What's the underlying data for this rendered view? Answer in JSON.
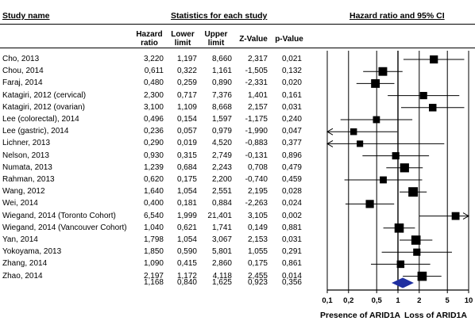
{
  "header": {
    "study_name": "Study name",
    "stats_title": "Statistics for each study",
    "plot_title": "Hazard ratio and 95% CI",
    "columns": [
      "Hazard ratio",
      "Lower limit",
      "Upper limit",
      "Z-Value",
      "p-Value"
    ]
  },
  "rows": [
    {
      "study": "Cho, 2013",
      "hr": "3,220",
      "lower": "1,197",
      "upper": "8,660",
      "z": "2,317",
      "p": "0,021"
    },
    {
      "study": "Chou, 2014",
      "hr": "0,611",
      "lower": "0,322",
      "upper": "1,161",
      "z": "-1,505",
      "p": "0,132"
    },
    {
      "study": "Faraj, 2014",
      "hr": "0,480",
      "lower": "0,259",
      "upper": "0,890",
      "z": "-2,331",
      "p": "0,020"
    },
    {
      "study": "Katagiri, 2012 (cervical)",
      "hr": "2,300",
      "lower": "0,717",
      "upper": "7,376",
      "z": "1,401",
      "p": "0,161"
    },
    {
      "study": "Katagiri, 2012 (ovarian)",
      "hr": "3,100",
      "lower": "1,109",
      "upper": "8,668",
      "z": "2,157",
      "p": "0,031"
    },
    {
      "study": "Lee (colorectal), 2014",
      "hr": "0,496",
      "lower": "0,154",
      "upper": "1,597",
      "z": "-1,175",
      "p": "0,240"
    },
    {
      "study": "Lee (gastric), 2014",
      "hr": "0,236",
      "lower": "0,057",
      "upper": "0,979",
      "z": "-1,990",
      "p": "0,047"
    },
    {
      "study": "Lichner, 2013",
      "hr": "0,290",
      "lower": "0,019",
      "upper": "4,520",
      "z": "-0,883",
      "p": "0,377"
    },
    {
      "study": "Nelson, 2013",
      "hr": "0,930",
      "lower": "0,315",
      "upper": "2,749",
      "z": "-0,131",
      "p": "0,896"
    },
    {
      "study": "Numata, 2013",
      "hr": "1,239",
      "lower": "0,684",
      "upper": "2,243",
      "z": "0,708",
      "p": "0,479"
    },
    {
      "study": "Rahman, 2013",
      "hr": "0,620",
      "lower": "0,175",
      "upper": "2,200",
      "z": "-0,740",
      "p": "0,459"
    },
    {
      "study": "Wang, 2012",
      "hr": "1,640",
      "lower": "1,054",
      "upper": "2,551",
      "z": "2,195",
      "p": "0,028"
    },
    {
      "study": "Wei, 2014",
      "hr": "0,400",
      "lower": "0,181",
      "upper": "0,884",
      "z": "-2,263",
      "p": "0,024"
    },
    {
      "study": "Wiegand, 2014 (Toronto Cohort)",
      "hr": "6,540",
      "lower": "1,999",
      "upper": "21,401",
      "z": "3,105",
      "p": "0,002"
    },
    {
      "study": "Wiegand, 2014 (Vancouver Cohort)",
      "hr": "1,040",
      "lower": "0,621",
      "upper": "1,741",
      "z": "0,149",
      "p": "0,881"
    },
    {
      "study": "Yan, 2014",
      "hr": "1,798",
      "lower": "1,054",
      "upper": "3,067",
      "z": "2,153",
      "p": "0,031"
    },
    {
      "study": "Yokoyama, 2013",
      "hr": "1,850",
      "lower": "0,590",
      "upper": "5,801",
      "z": "1,055",
      "p": "0,291"
    },
    {
      "study": "Zhang, 2014",
      "hr": "1,090",
      "lower": "0,415",
      "upper": "2,860",
      "z": "0,175",
      "p": "0,861"
    },
    {
      "study": "Zhao, 2014",
      "hr": "2,197",
      "lower": "1,172",
      "upper": "4,118",
      "z": "2,455",
      "p": "0,014"
    }
  ],
  "summary": {
    "hr": "1,168",
    "lower": "0,840",
    "upper": "1,625",
    "z": "0,923",
    "p": "0,356"
  },
  "axis": {
    "ticks": [
      "0,1",
      "0,2",
      "0,5",
      "1",
      "2",
      "5",
      "10"
    ],
    "left_label": "Presence of ARID1A",
    "right_label": "Loss of ARID1A"
  },
  "colors": {
    "summary_diamond": "#1f2fa0",
    "marker": "#000000"
  },
  "chart_data": {
    "type": "forest",
    "x_scale": "log",
    "xlim": [
      0.1,
      10
    ],
    "reference_line": 1,
    "studies": [
      {
        "name": "Cho, 2013",
        "hr": 3.22,
        "lower": 1.197,
        "upper": 8.66,
        "weight": 0.6
      },
      {
        "name": "Chou, 2014",
        "hr": 0.611,
        "lower": 0.322,
        "upper": 1.161,
        "weight": 0.7
      },
      {
        "name": "Faraj, 2014",
        "hr": 0.48,
        "lower": 0.259,
        "upper": 0.89,
        "weight": 0.7
      },
      {
        "name": "Katagiri, 2012 (cervical)",
        "hr": 2.3,
        "lower": 0.717,
        "upper": 7.376,
        "weight": 0.45
      },
      {
        "name": "Katagiri, 2012 (ovarian)",
        "hr": 3.1,
        "lower": 1.109,
        "upper": 8.668,
        "weight": 0.5
      },
      {
        "name": "Lee (colorectal), 2014",
        "hr": 0.496,
        "lower": 0.154,
        "upper": 1.597,
        "weight": 0.4
      },
      {
        "name": "Lee (gastric), 2014",
        "hr": 0.236,
        "lower": 0.057,
        "upper": 0.979,
        "weight": 0.35
      },
      {
        "name": "Lichner, 2013",
        "hr": 0.29,
        "lower": 0.019,
        "upper": 4.52,
        "weight": 0.3
      },
      {
        "name": "Nelson, 2013",
        "hr": 0.93,
        "lower": 0.315,
        "upper": 2.749,
        "weight": 0.45
      },
      {
        "name": "Numata, 2013",
        "hr": 1.239,
        "lower": 0.684,
        "upper": 2.243,
        "weight": 0.75
      },
      {
        "name": "Rahman, 2013",
        "hr": 0.62,
        "lower": 0.175,
        "upper": 2.2,
        "weight": 0.4
      },
      {
        "name": "Wang, 2012",
        "hr": 1.64,
        "lower": 1.054,
        "upper": 2.551,
        "weight": 0.85
      },
      {
        "name": "Wei, 2014",
        "hr": 0.4,
        "lower": 0.181,
        "upper": 0.884,
        "weight": 0.6
      },
      {
        "name": "Wiegand, 2014 (Toronto Cohort)",
        "hr": 6.54,
        "lower": 1.999,
        "upper": 21.401,
        "weight": 0.55
      },
      {
        "name": "Wiegand, 2014 (Vancouver Cohort)",
        "hr": 1.04,
        "lower": 0.621,
        "upper": 1.741,
        "weight": 0.8
      },
      {
        "name": "Yan, 2014",
        "hr": 1.798,
        "lower": 1.054,
        "upper": 3.067,
        "weight": 0.8
      },
      {
        "name": "Yokoyama, 2013",
        "hr": 1.85,
        "lower": 0.59,
        "upper": 5.801,
        "weight": 0.45
      },
      {
        "name": "Zhang, 2014",
        "hr": 1.09,
        "lower": 0.415,
        "upper": 2.86,
        "weight": 0.5
      },
      {
        "name": "Zhao, 2014",
        "hr": 2.197,
        "lower": 1.172,
        "upper": 4.118,
        "weight": 0.8
      }
    ],
    "pooled": {
      "hr": 1.168,
      "lower": 0.84,
      "upper": 1.625
    }
  }
}
